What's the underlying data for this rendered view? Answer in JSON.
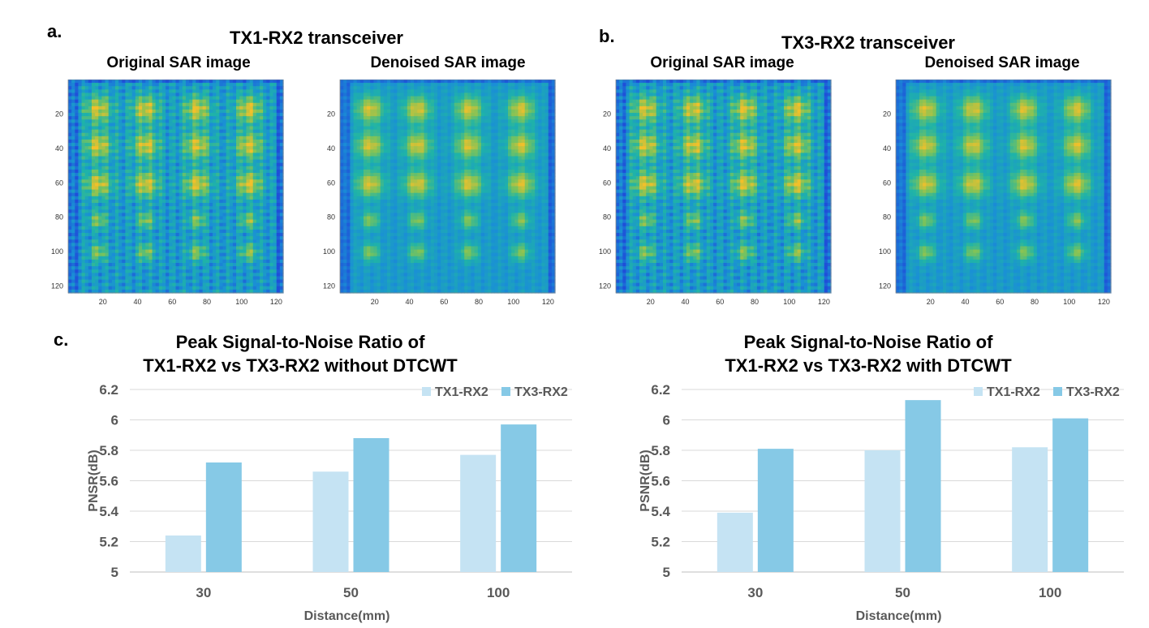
{
  "panels": {
    "a_label": "a.",
    "b_label": "b.",
    "c_label": "c."
  },
  "sar": {
    "groups": [
      {
        "title": "TX1-RX2 transceiver",
        "images": [
          {
            "title": "Original SAR image",
            "variant": "noisy"
          },
          {
            "title": "Denoised SAR image",
            "variant": "smooth"
          }
        ]
      },
      {
        "title": "TX3-RX2 transceiver",
        "images": [
          {
            "title": "Original SAR image",
            "variant": "noisy"
          },
          {
            "title": "Denoised SAR image",
            "variant": "smooth"
          }
        ]
      }
    ],
    "axis_ticks_x": [
      "20",
      "40",
      "60",
      "80",
      "100",
      "120"
    ],
    "axis_ticks_y": [
      "20",
      "40",
      "60",
      "80",
      "100",
      "120"
    ],
    "colormap": [
      "#1f4fd8",
      "#1a8fd6",
      "#1fb3a8",
      "#7cc35a",
      "#f2c02a"
    ]
  },
  "chart_data": [
    {
      "type": "bar",
      "title_line1": "Peak Signal-to-Noise Ratio of",
      "title_line2": "TX1-RX2 vs TX3-RX2 without DTCWT",
      "xlabel": "Distance(mm)",
      "ylabel": "PNSR(dB)",
      "categories": [
        "30",
        "50",
        "100"
      ],
      "series": [
        {
          "name": "TX1-RX2",
          "values": [
            5.24,
            5.66,
            5.77
          ],
          "color": "#c5e3f3"
        },
        {
          "name": "TX3-RX2",
          "values": [
            5.72,
            5.88,
            5.97
          ],
          "color": "#86c9e6"
        }
      ],
      "ylim": [
        5,
        6.2
      ],
      "yticks": [
        "5",
        "5.2",
        "5.4",
        "5.6",
        "5.8",
        "6",
        "6.2"
      ],
      "grid": true,
      "legend": "top-right"
    },
    {
      "type": "bar",
      "title_line1": "Peak Signal-to-Noise Ratio of",
      "title_line2": "TX1-RX2 vs TX3-RX2 with DTCWT",
      "xlabel": "Distance(mm)",
      "ylabel": "PSNR(dB)",
      "categories": [
        "30",
        "50",
        "100"
      ],
      "series": [
        {
          "name": "TX1-RX2",
          "values": [
            5.39,
            5.8,
            5.82
          ],
          "color": "#c5e3f3"
        },
        {
          "name": "TX3-RX2",
          "values": [
            5.81,
            6.13,
            6.01
          ],
          "color": "#86c9e6"
        }
      ],
      "ylim": [
        5,
        6.2
      ],
      "yticks": [
        "5",
        "5.2",
        "5.4",
        "5.6",
        "5.8",
        "6",
        "6.2"
      ],
      "grid": true,
      "legend": "top-right"
    }
  ]
}
